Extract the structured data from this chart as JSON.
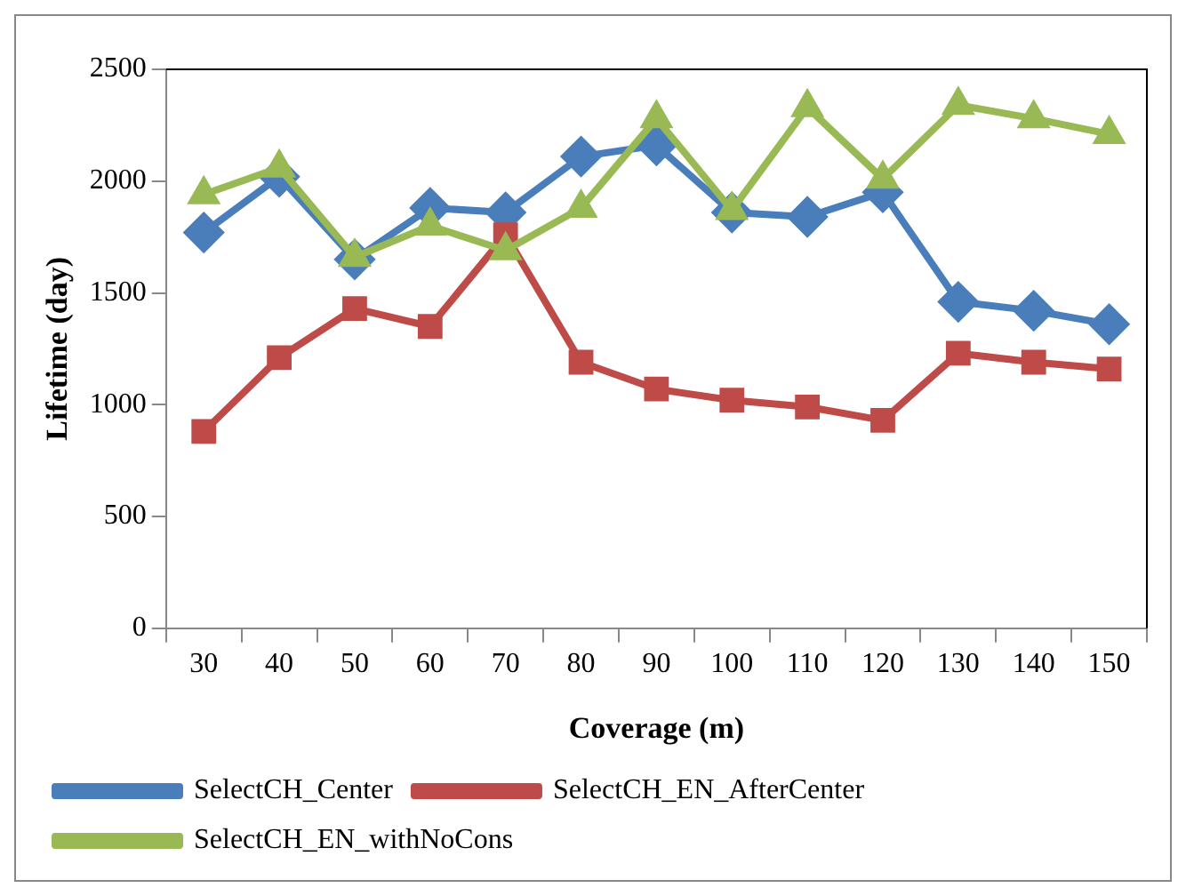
{
  "chart_data": {
    "type": "line",
    "xlabel": "Coverage (m)",
    "ylabel": "Lifetime (day)",
    "categories": [
      "30",
      "40",
      "50",
      "60",
      "70",
      "80",
      "90",
      "100",
      "110",
      "120",
      "130",
      "140",
      "150"
    ],
    "series": [
      {
        "name": "SelectCH_Center",
        "color": "#4a7ebb",
        "marker": "diamond",
        "values": [
          1770,
          2020,
          1650,
          1880,
          1860,
          2110,
          2160,
          1860,
          1840,
          1950,
          1460,
          1420,
          1360
        ]
      },
      {
        "name": "SelectCH_EN_AfterCenter",
        "color": "#be4b48",
        "marker": "square",
        "values": [
          880,
          1210,
          1430,
          1350,
          1760,
          1190,
          1070,
          1020,
          990,
          930,
          1230,
          1190,
          1160
        ]
      },
      {
        "name": "SelectCH_EN_withNoCons",
        "color": "#98b954",
        "marker": "triangle",
        "values": [
          1940,
          2060,
          1660,
          1800,
          1690,
          1880,
          2280,
          1870,
          2330,
          2010,
          2340,
          2280,
          2210
        ]
      }
    ],
    "ylim": [
      0,
      2500
    ],
    "yticks": [
      0,
      500,
      1000,
      1500,
      2000,
      2500
    ],
    "grid": false,
    "legend": "bottom",
    "line_style": "solid"
  }
}
